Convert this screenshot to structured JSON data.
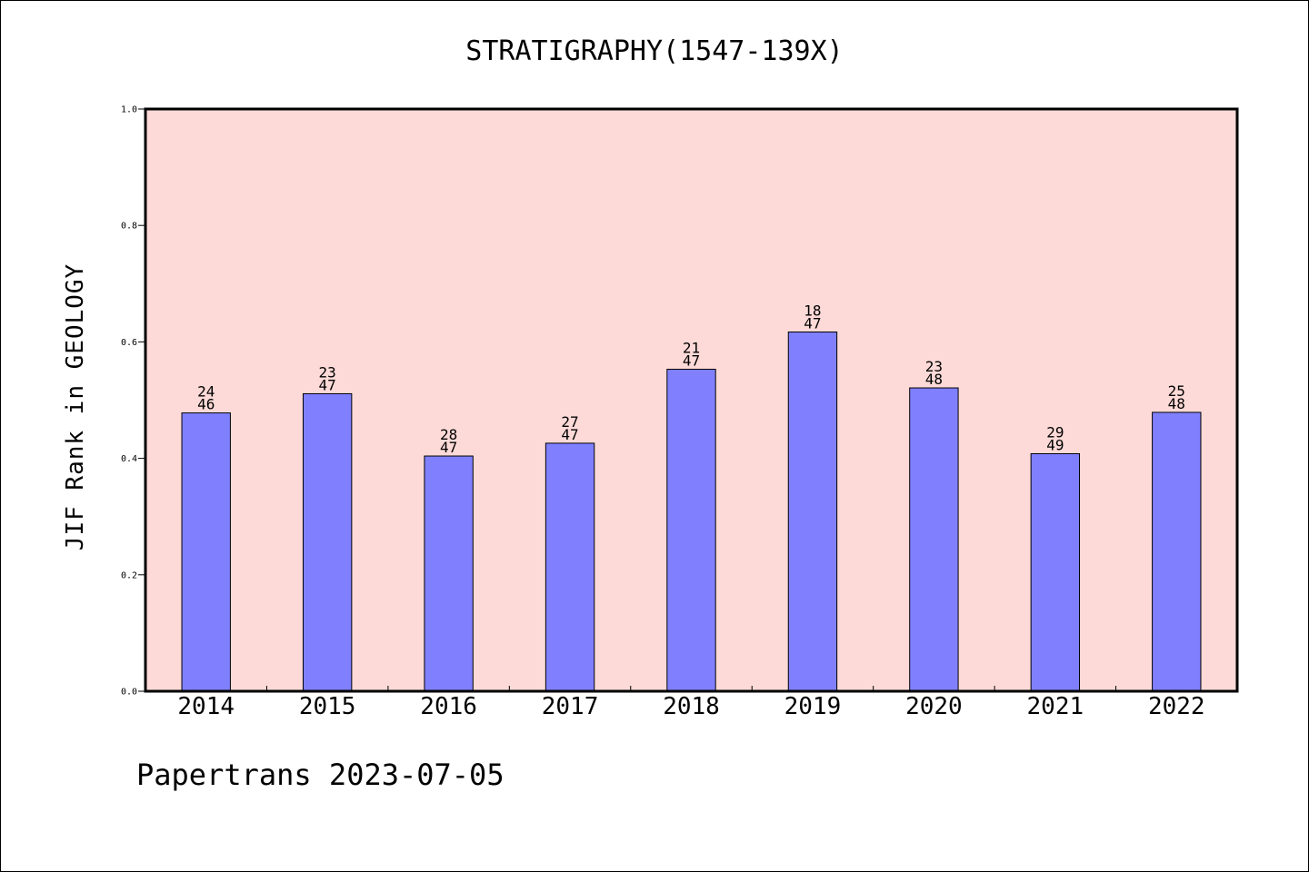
{
  "chart_data": {
    "type": "bar",
    "title": "STRATIGRAPHY(1547-139X)",
    "ylabel": "JIF Rank in GEOLOGY",
    "xlabel": "",
    "categories": [
      "2014",
      "2015",
      "2016",
      "2017",
      "2018",
      "2019",
      "2020",
      "2021",
      "2022"
    ],
    "values": [
      0.478,
      0.511,
      0.404,
      0.426,
      0.553,
      0.617,
      0.521,
      0.408,
      0.479
    ],
    "bar_labels": [
      [
        "24",
        "46"
      ],
      [
        "23",
        "47"
      ],
      [
        "28",
        "47"
      ],
      [
        "27",
        "47"
      ],
      [
        "21",
        "47"
      ],
      [
        "18",
        "47"
      ],
      [
        "23",
        "48"
      ],
      [
        "29",
        "49"
      ],
      [
        "25",
        "48"
      ]
    ],
    "ylim": [
      0.0,
      1.0
    ],
    "yticks": [
      "0.0",
      "0.2",
      "0.4",
      "0.6",
      "0.8",
      "1.0"
    ],
    "grid": false,
    "colors": {
      "bar": "#8080ff",
      "plot_background": "#fddad7",
      "axes": "#000000"
    }
  },
  "footer": {
    "text": "Papertrans 2023-07-05"
  }
}
